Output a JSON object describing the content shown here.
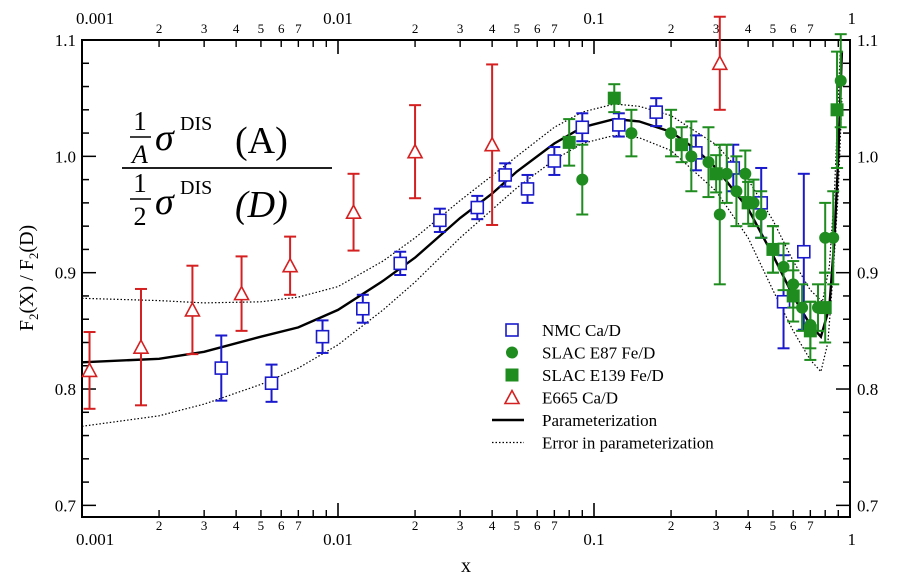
{
  "chart_data": {
    "type": "scatter",
    "x_scale": "log",
    "xlim": [
      0.001,
      1
    ],
    "ylim": [
      0.69,
      1.1
    ],
    "xlabel": "x",
    "ylabel": "F2(X) / F2(D)",
    "x_major_ticks": [
      {
        "value": 0.001,
        "label": "0.001"
      },
      {
        "value": 0.01,
        "label": "0.01"
      },
      {
        "value": 0.1,
        "label": "0.1"
      },
      {
        "value": 1,
        "label": "1"
      }
    ],
    "x_minor_labels": [
      "2",
      "3",
      "4",
      "5",
      "6",
      "7"
    ],
    "y_ticks": [
      {
        "value": 0.7,
        "label": "0.7"
      },
      {
        "value": 0.8,
        "label": "0.8"
      },
      {
        "value": 0.9,
        "label": "0.9"
      },
      {
        "value": 1.0,
        "label": "1.0"
      },
      {
        "value": 1.1,
        "label": "1.1"
      }
    ],
    "formula": {
      "num_coef_top": "1",
      "num_coef_bottom": "A",
      "num_sigma": "σ",
      "num_sup": "DIS",
      "num_arg": "(A)",
      "den_coef_top": "1",
      "den_coef_bottom": "2",
      "den_sigma": "σ",
      "den_sup": "DIS",
      "den_arg": "(D)"
    },
    "series": [
      {
        "name": "NMC Ca/D",
        "marker": "open-square",
        "color": "#1a1acc",
        "points": [
          {
            "x": 0.0035,
            "y": 0.818,
            "err": 0.028
          },
          {
            "x": 0.0055,
            "y": 0.805,
            "err": 0.016
          },
          {
            "x": 0.0087,
            "y": 0.845,
            "err": 0.014
          },
          {
            "x": 0.0125,
            "y": 0.869,
            "err": 0.012
          },
          {
            "x": 0.0175,
            "y": 0.908,
            "err": 0.01
          },
          {
            "x": 0.025,
            "y": 0.945,
            "err": 0.01
          },
          {
            "x": 0.035,
            "y": 0.956,
            "err": 0.01
          },
          {
            "x": 0.045,
            "y": 0.984,
            "err": 0.01
          },
          {
            "x": 0.055,
            "y": 0.972,
            "err": 0.012
          },
          {
            "x": 0.07,
            "y": 0.996,
            "err": 0.012
          },
          {
            "x": 0.09,
            "y": 1.025,
            "err": 0.012
          },
          {
            "x": 0.125,
            "y": 1.027,
            "err": 0.01
          },
          {
            "x": 0.175,
            "y": 1.038,
            "err": 0.012
          },
          {
            "x": 0.25,
            "y": 1.003,
            "err": 0.015
          },
          {
            "x": 0.35,
            "y": 0.99,
            "err": 0.02
          },
          {
            "x": 0.45,
            "y": 0.96,
            "err": 0.03
          },
          {
            "x": 0.55,
            "y": 0.875,
            "err": 0.04
          },
          {
            "x": 0.66,
            "y": 0.918,
            "err": 0.067
          }
        ]
      },
      {
        "name": "SLAC E87 Fe/D",
        "marker": "filled-circle",
        "color": "#1f8c1f",
        "points": [
          {
            "x": 0.09,
            "y": 0.98,
            "err": 0.03
          },
          {
            "x": 0.14,
            "y": 1.02,
            "err": 0.02
          },
          {
            "x": 0.2,
            "y": 1.02,
            "err": 0.02
          },
          {
            "x": 0.24,
            "y": 1.0,
            "err": 0.03
          },
          {
            "x": 0.28,
            "y": 0.995,
            "err": 0.03
          },
          {
            "x": 0.31,
            "y": 0.95,
            "err": 0.06
          },
          {
            "x": 0.33,
            "y": 0.985,
            "err": 0.025
          },
          {
            "x": 0.36,
            "y": 0.97,
            "err": 0.03
          },
          {
            "x": 0.39,
            "y": 0.985,
            "err": 0.02
          },
          {
            "x": 0.42,
            "y": 0.96,
            "err": 0.02
          },
          {
            "x": 0.45,
            "y": 0.95,
            "err": 0.02
          },
          {
            "x": 0.5,
            "y": 0.92,
            "err": 0.02
          },
          {
            "x": 0.55,
            "y": 0.905,
            "err": 0.02
          },
          {
            "x": 0.6,
            "y": 0.89,
            "err": 0.02
          },
          {
            "x": 0.65,
            "y": 0.87,
            "err": 0.02
          },
          {
            "x": 0.7,
            "y": 0.855,
            "err": 0.02
          },
          {
            "x": 0.75,
            "y": 0.87,
            "err": 0.02
          },
          {
            "x": 0.8,
            "y": 0.93,
            "err": 0.03
          },
          {
            "x": 0.86,
            "y": 0.93,
            "err": 0.04
          },
          {
            "x": 0.92,
            "y": 1.065,
            "err": 0.04
          }
        ]
      },
      {
        "name": "SLAC E139 Fe/D",
        "marker": "filled-square",
        "color": "#1f8c1f",
        "points": [
          {
            "x": 0.08,
            "y": 1.012,
            "err": 0.02
          },
          {
            "x": 0.12,
            "y": 1.05,
            "err": 0.012
          },
          {
            "x": 0.22,
            "y": 1.01,
            "err": 0.015
          },
          {
            "x": 0.3,
            "y": 0.985,
            "err": 0.016
          },
          {
            "x": 0.4,
            "y": 0.96,
            "err": 0.018
          },
          {
            "x": 0.5,
            "y": 0.92,
            "err": 0.02
          },
          {
            "x": 0.6,
            "y": 0.88,
            "err": 0.022
          },
          {
            "x": 0.7,
            "y": 0.85,
            "err": 0.025
          },
          {
            "x": 0.8,
            "y": 0.87,
            "err": 0.03
          },
          {
            "x": 0.89,
            "y": 1.04,
            "err": 0.05
          }
        ]
      },
      {
        "name": "E665  Ca/D",
        "marker": "open-triangle",
        "color": "#d42020",
        "points": [
          {
            "x": 0.00107,
            "y": 0.816,
            "err": 0.033
          },
          {
            "x": 0.0017,
            "y": 0.836,
            "err": 0.05
          },
          {
            "x": 0.0027,
            "y": 0.868,
            "err": 0.038
          },
          {
            "x": 0.0042,
            "y": 0.882,
            "err": 0.032
          },
          {
            "x": 0.0065,
            "y": 0.906,
            "err": 0.025
          },
          {
            "x": 0.0115,
            "y": 0.952,
            "err": 0.033
          },
          {
            "x": 0.02,
            "y": 1.004,
            "err": 0.04
          },
          {
            "x": 0.04,
            "y": 1.01,
            "err": 0.069
          },
          {
            "x": 0.31,
            "y": 1.08,
            "err": 0.04
          }
        ]
      }
    ],
    "curves": [
      {
        "name": "Parameterization",
        "style": "solid",
        "points": [
          [
            0.001,
            0.823
          ],
          [
            0.002,
            0.826
          ],
          [
            0.003,
            0.832
          ],
          [
            0.005,
            0.845
          ],
          [
            0.007,
            0.853
          ],
          [
            0.01,
            0.868
          ],
          [
            0.015,
            0.893
          ],
          [
            0.02,
            0.913
          ],
          [
            0.03,
            0.947
          ],
          [
            0.04,
            0.968
          ],
          [
            0.05,
            0.987
          ],
          [
            0.07,
            1.011
          ],
          [
            0.09,
            1.025
          ],
          [
            0.12,
            1.032
          ],
          [
            0.15,
            1.03
          ],
          [
            0.2,
            1.021
          ],
          [
            0.25,
            1.006
          ],
          [
            0.3,
            0.99
          ],
          [
            0.4,
            0.955
          ],
          [
            0.5,
            0.915
          ],
          [
            0.6,
            0.88
          ],
          [
            0.7,
            0.855
          ],
          [
            0.77,
            0.845
          ],
          [
            0.83,
            0.87
          ],
          [
            0.87,
            0.93
          ],
          [
            0.9,
            1.0
          ],
          [
            0.93,
            1.09
          ]
        ]
      },
      {
        "name": "Error in parameterization",
        "style": "dotted",
        "points": [
          [
            0.001,
            0.878
          ],
          [
            0.002,
            0.876
          ],
          [
            0.003,
            0.874
          ],
          [
            0.005,
            0.875
          ],
          [
            0.007,
            0.879
          ],
          [
            0.01,
            0.888
          ],
          [
            0.015,
            0.91
          ],
          [
            0.02,
            0.93
          ],
          [
            0.03,
            0.962
          ],
          [
            0.05,
            1.0
          ],
          [
            0.07,
            1.025
          ],
          [
            0.09,
            1.038
          ],
          [
            0.12,
            1.045
          ],
          [
            0.15,
            1.043
          ],
          [
            0.2,
            1.035
          ],
          [
            0.3,
            1.01
          ],
          [
            0.4,
            0.98
          ],
          [
            0.5,
            0.945
          ],
          [
            0.6,
            0.91
          ],
          [
            0.7,
            0.885
          ],
          [
            0.78,
            0.875
          ],
          [
            0.83,
            0.905
          ],
          [
            0.87,
            0.97
          ],
          [
            0.9,
            1.05
          ],
          [
            0.92,
            1.1
          ]
        ]
      },
      {
        "name": "",
        "style": "dotted",
        "points": [
          [
            0.001,
            0.768
          ],
          [
            0.002,
            0.777
          ],
          [
            0.003,
            0.787
          ],
          [
            0.005,
            0.804
          ],
          [
            0.007,
            0.818
          ],
          [
            0.01,
            0.838
          ],
          [
            0.015,
            0.868
          ],
          [
            0.02,
            0.892
          ],
          [
            0.03,
            0.93
          ],
          [
            0.05,
            0.973
          ],
          [
            0.07,
            0.997
          ],
          [
            0.09,
            1.011
          ],
          [
            0.12,
            1.018
          ],
          [
            0.15,
            1.016
          ],
          [
            0.2,
            1.005
          ],
          [
            0.3,
            0.97
          ],
          [
            0.4,
            0.93
          ],
          [
            0.5,
            0.885
          ],
          [
            0.6,
            0.85
          ],
          [
            0.7,
            0.825
          ],
          [
            0.77,
            0.815
          ],
          [
            0.82,
            0.84
          ],
          [
            0.86,
            0.9
          ],
          [
            0.9,
            0.97
          ],
          [
            0.93,
            1.05
          ]
        ]
      }
    ],
    "legend": {
      "placement": "lower-right",
      "entries": [
        {
          "label": "NMC Ca/D",
          "symbol": "open-square",
          "color": "#1a1acc"
        },
        {
          "label": "SLAC E87 Fe/D",
          "symbol": "filled-circle",
          "color": "#1f8c1f"
        },
        {
          "label": "SLAC E139 Fe/D",
          "symbol": "filled-square",
          "color": "#1f8c1f"
        },
        {
          "label": "E665  Ca/D",
          "symbol": "open-triangle",
          "color": "#d42020"
        },
        {
          "label": "Parameterization",
          "symbol": "solid-line",
          "color": "#000000"
        },
        {
          "label": "Error in parameterization",
          "symbol": "dotted-line",
          "color": "#000000"
        }
      ]
    }
  }
}
